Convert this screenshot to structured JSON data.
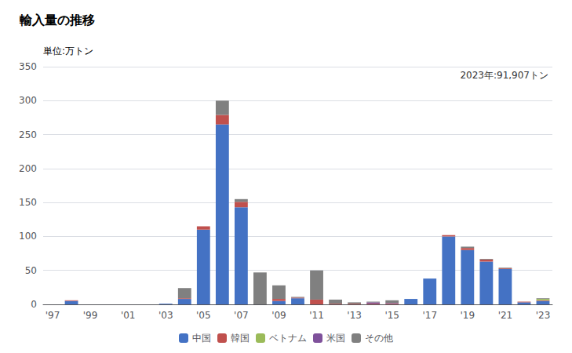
{
  "chart_data": {
    "type": "bar",
    "title": "輸入量の推移",
    "ylabel": "単位:万トン",
    "annotation": "2023年:91,907トン",
    "categories": [
      "'97",
      null,
      "'99",
      null,
      "'01",
      null,
      "'03",
      null,
      "'05",
      null,
      "'07",
      null,
      "'09",
      null,
      "'11",
      null,
      "'13",
      null,
      "'15",
      null,
      "'17",
      null,
      "'19",
      null,
      "'21",
      null,
      "'23"
    ],
    "series": [
      {
        "name": "中国",
        "color": "#4472c4",
        "values": [
          0,
          5,
          0,
          0,
          0,
          0,
          1,
          8,
          110,
          265,
          143,
          0,
          5,
          9,
          0,
          0,
          0,
          0,
          0,
          8,
          38,
          100,
          80,
          63,
          52,
          3,
          5
        ]
      },
      {
        "name": "韓国",
        "color": "#c0504d",
        "values": [
          0,
          1,
          0,
          0,
          0,
          0,
          0,
          1,
          5,
          14,
          8,
          0,
          3,
          1,
          7,
          1,
          1,
          1,
          1,
          0,
          0,
          2,
          3,
          3,
          1,
          1,
          1
        ]
      },
      {
        "name": "ベトナム",
        "color": "#9bbb59",
        "values": [
          0,
          0,
          0,
          0,
          0,
          0,
          0,
          0,
          0,
          0,
          0,
          0,
          0,
          0,
          0,
          0,
          0,
          0,
          0,
          0,
          0,
          0,
          0,
          0,
          0,
          0,
          2
        ]
      },
      {
        "name": "米国",
        "color": "#7f519b",
        "values": [
          0,
          0,
          0,
          0,
          0,
          0,
          0,
          0,
          0,
          0,
          0,
          0,
          0,
          0,
          0,
          0,
          0,
          2,
          1,
          0,
          0,
          0,
          0,
          0,
          0,
          0,
          0
        ]
      },
      {
        "name": "その他",
        "color": "#808080",
        "values": [
          0,
          0,
          0,
          0,
          0,
          0,
          0,
          15,
          0,
          21,
          4,
          47,
          20,
          1,
          43,
          6,
          2,
          1,
          4,
          0,
          0,
          0,
          2,
          1,
          1,
          0,
          1
        ]
      }
    ],
    "ylim": [
      0,
      350
    ],
    "yticks": [
      0,
      50,
      100,
      150,
      200,
      250,
      300,
      350
    ],
    "stacked": true,
    "grid": true,
    "legend": "bottom"
  }
}
